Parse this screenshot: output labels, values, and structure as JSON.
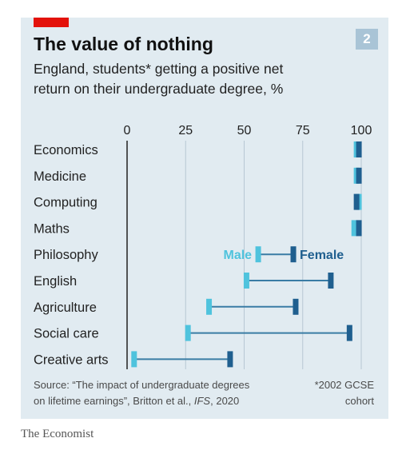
{
  "header": {
    "title": "The value of nothing",
    "subtitle_line1": "England, students* getting a positive net",
    "subtitle_line2": "return on their undergraduate degree, %",
    "badge": "2"
  },
  "chart_data": {
    "type": "dumbbell",
    "xlim": [
      0,
      100
    ],
    "xticks": [
      "0",
      "25",
      "50",
      "75",
      "100"
    ],
    "xtick_values": [
      0,
      25,
      50,
      75,
      100
    ],
    "grid": true,
    "categories": [
      "Economics",
      "Medicine",
      "Computing",
      "Maths",
      "Philosophy",
      "English",
      "Agriculture",
      "Social care",
      "Creative arts"
    ],
    "series": [
      {
        "name": "Male",
        "values": [
          98,
          98,
          99,
          97,
          56,
          51,
          35,
          26,
          3
        ]
      },
      {
        "name": "Female",
        "values": [
          99,
          99,
          98,
          99,
          71,
          87,
          72,
          95,
          44
        ]
      }
    ],
    "annotations": {
      "male_label": "Male",
      "female_label": "Female"
    }
  },
  "footer": {
    "source_line1": "Source: “The impact of undergraduate degrees",
    "source_line2_pre": "on lifetime earnings”, Britton et al., ",
    "source_line2_italic": "IFS",
    "source_line2_post": ", 2020",
    "note_line1": "*2002 GCSE",
    "note_line2": "cohort"
  },
  "brand": "The Economist",
  "colors": {
    "male": "#4fc3dd",
    "female": "#1f5f8f",
    "connector": "#3a7ca5",
    "accent_red": "#e3120b",
    "badge_bg": "#a9c4d6",
    "grid": "#b7c7d3",
    "axis": "#2d2d2d"
  }
}
